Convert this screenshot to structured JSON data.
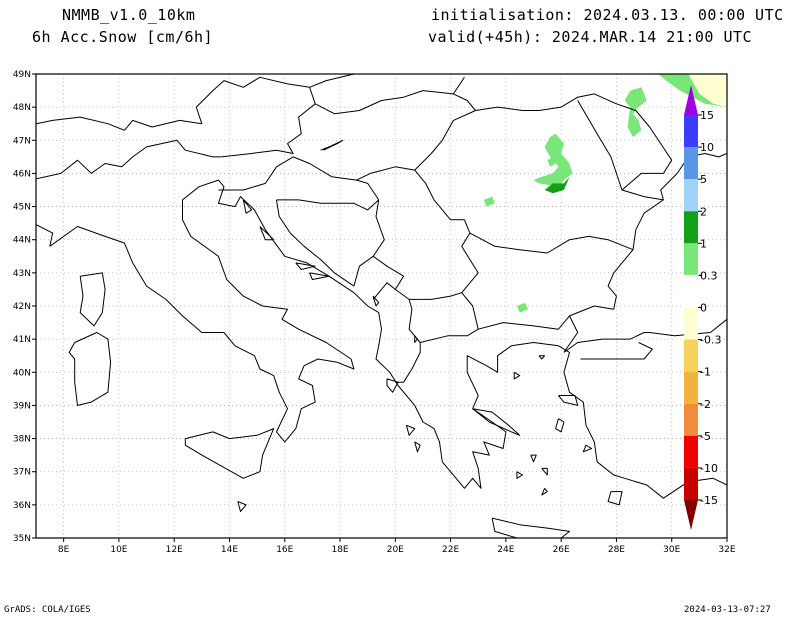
{
  "header": {
    "model": "NMMB_v1.0_10km",
    "variable": "6h Acc.Snow [cm/6h]",
    "initialisation": "initialisation: 2024.03.13.  00:00 UTC",
    "valid": "valid(+45h): 2024.MAR.14 21:00 UTC"
  },
  "footer": {
    "software": "GrADS: COLA/IGES",
    "timestamp": "2024-03-13-07:27"
  },
  "map": {
    "lon_range": [
      7,
      32
    ],
    "lat_range": [
      35,
      49
    ],
    "lon_ticks": [
      {
        "value": 8,
        "label": "8E"
      },
      {
        "value": 10,
        "label": "10E"
      },
      {
        "value": 12,
        "label": "12E"
      },
      {
        "value": 14,
        "label": "14E"
      },
      {
        "value": 16,
        "label": "16E"
      },
      {
        "value": 18,
        "label": "18E"
      },
      {
        "value": 20,
        "label": "20E"
      },
      {
        "value": 22,
        "label": "22E"
      },
      {
        "value": 24,
        "label": "24E"
      },
      {
        "value": 26,
        "label": "26E"
      },
      {
        "value": 28,
        "label": "28E"
      },
      {
        "value": 30,
        "label": "30E"
      },
      {
        "value": 32,
        "label": "32E"
      }
    ],
    "lat_ticks": [
      {
        "value": 35,
        "label": "35N"
      },
      {
        "value": 36,
        "label": "36N"
      },
      {
        "value": 37,
        "label": "37N"
      },
      {
        "value": 38,
        "label": "38N"
      },
      {
        "value": 39,
        "label": "39N"
      },
      {
        "value": 40,
        "label": "40N"
      },
      {
        "value": 41,
        "label": "41N"
      },
      {
        "value": 42,
        "label": "42N"
      },
      {
        "value": 43,
        "label": "43N"
      },
      {
        "value": 44,
        "label": "44N"
      },
      {
        "value": 45,
        "label": "45N"
      },
      {
        "value": 46,
        "label": "46N"
      },
      {
        "value": 47,
        "label": "47N"
      },
      {
        "value": 48,
        "label": "48N"
      },
      {
        "value": 49,
        "label": "49N"
      }
    ],
    "colors": {
      "coast": "#000000",
      "grid": "#b0b0b0",
      "frame": "#000000"
    }
  },
  "colorbar": {
    "bins": [
      {
        "color": "#a000e0",
        "label": "15"
      },
      {
        "color": "#3c3cff",
        "label": "10"
      },
      {
        "color": "#5a96e6",
        "label": "5"
      },
      {
        "color": "#a0d2fa",
        "label": "2"
      },
      {
        "color": "#14a014",
        "label": "1"
      },
      {
        "color": "#78e678",
        "label": "0.3"
      },
      {
        "color": "#ffffff",
        "label": "0"
      },
      {
        "color": "#ffffd2",
        "label": "-0.3"
      },
      {
        "color": "#f5d25a",
        "label": "-1"
      },
      {
        "color": "#f0b43c",
        "label": "-2"
      },
      {
        "color": "#f08c3c",
        "label": "-5"
      },
      {
        "color": "#f00000",
        "label": "-10"
      },
      {
        "color": "#c80000",
        "label": "-15"
      },
      {
        "color": "#820000",
        "label": ""
      }
    ]
  },
  "snow_areas": [
    {
      "level": "0.3-1",
      "color": "#78e678",
      "points": [
        [
          25.6,
          47.1
        ],
        [
          25.8,
          47.2
        ],
        [
          26.1,
          46.9
        ],
        [
          26.0,
          46.6
        ],
        [
          26.3,
          46.3
        ],
        [
          26.4,
          46.0
        ],
        [
          26.1,
          45.8
        ],
        [
          25.9,
          45.6
        ],
        [
          25.2,
          45.7
        ],
        [
          25.0,
          45.8
        ],
        [
          25.3,
          45.9
        ],
        [
          25.7,
          46.0
        ],
        [
          25.9,
          46.2
        ],
        [
          25.6,
          46.5
        ],
        [
          25.4,
          46.8
        ]
      ]
    },
    {
      "level": "0.3-1",
      "color": "#78e678",
      "points": [
        [
          28.5,
          48.5
        ],
        [
          28.9,
          48.6
        ],
        [
          29.1,
          48.2
        ],
        [
          28.8,
          48.0
        ],
        [
          28.6,
          47.8
        ],
        [
          28.8,
          47.6
        ],
        [
          28.9,
          47.3
        ],
        [
          28.6,
          47.1
        ],
        [
          28.4,
          47.4
        ],
        [
          28.5,
          48.0
        ],
        [
          28.3,
          48.2
        ]
      ]
    },
    {
      "level": "0.3-1",
      "color": "#78e678",
      "points": [
        [
          23.2,
          45.2
        ],
        [
          23.5,
          45.3
        ],
        [
          23.6,
          45.1
        ],
        [
          23.3,
          45.0
        ]
      ]
    },
    {
      "level": "0.3-1",
      "color": "#78e678",
      "points": [
        [
          24.4,
          42.0
        ],
        [
          24.7,
          42.1
        ],
        [
          24.8,
          41.9
        ],
        [
          24.5,
          41.8
        ]
      ]
    },
    {
      "level": "0.3-1",
      "color": "#78e678",
      "points": [
        [
          25.5,
          46.4
        ],
        [
          25.7,
          46.5
        ],
        [
          25.8,
          46.3
        ],
        [
          25.6,
          46.2
        ]
      ]
    },
    {
      "level": "1-2",
      "color": "#14a014",
      "points": [
        [
          25.4,
          45.5
        ],
        [
          25.7,
          45.7
        ],
        [
          26.1,
          45.7
        ],
        [
          26.3,
          45.9
        ],
        [
          26.1,
          45.5
        ],
        [
          25.7,
          45.4
        ]
      ]
    },
    {
      "level": "0.3-1",
      "color": "#78e678",
      "points": [
        [
          29.5,
          49.0
        ],
        [
          32.0,
          49.0
        ],
        [
          32.0,
          48.0
        ],
        [
          31.2,
          48.1
        ],
        [
          30.3,
          48.5
        ],
        [
          29.8,
          48.8
        ]
      ]
    },
    {
      "level": "-0.3-0",
      "color": "#ffffd2",
      "points": [
        [
          30.6,
          49.0
        ],
        [
          32.0,
          49.0
        ],
        [
          32.0,
          48.0
        ],
        [
          31.5,
          48.1
        ],
        [
          31.0,
          48.4
        ],
        [
          30.8,
          48.7
        ]
      ]
    }
  ]
}
